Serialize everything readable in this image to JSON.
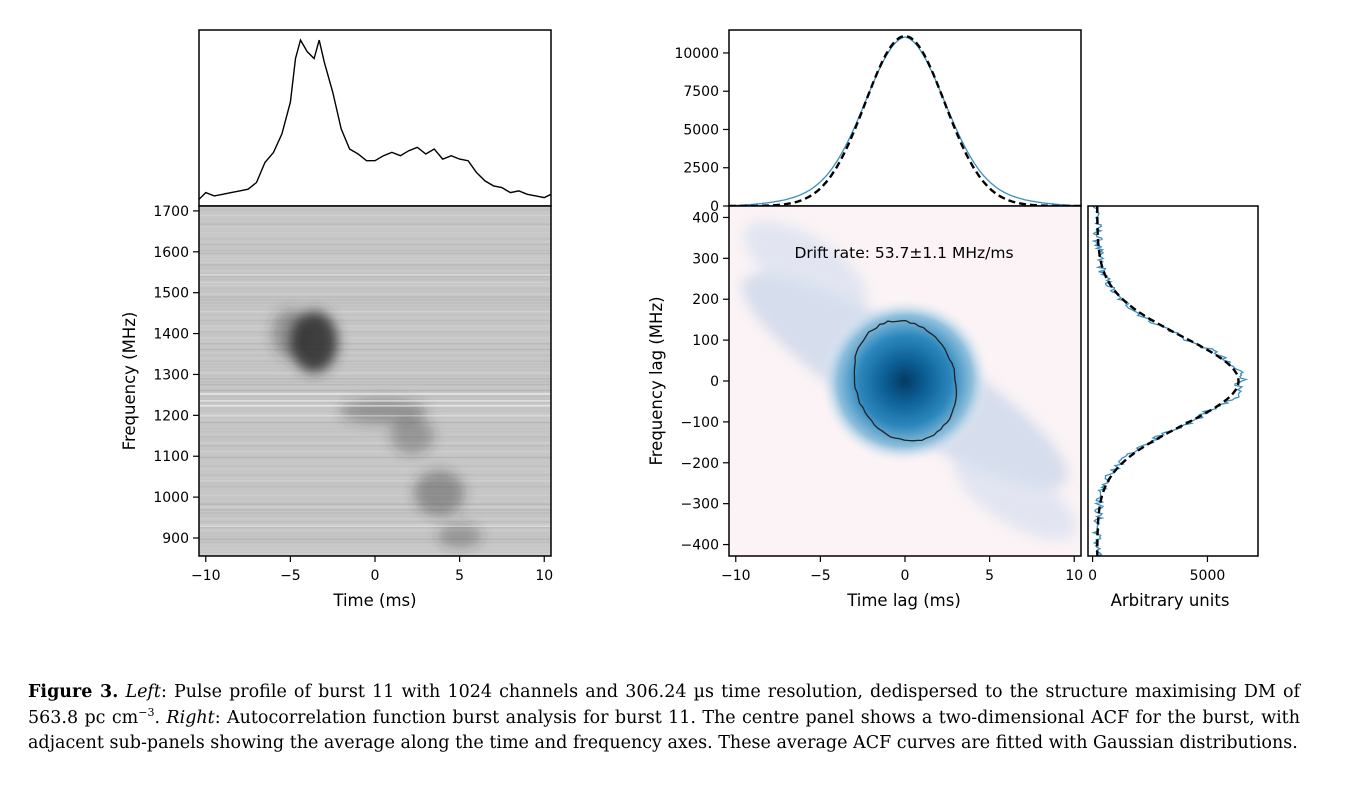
{
  "caption": {
    "label": "Figure 3.",
    "left_word": "Left",
    "left_text": ": Pulse profile of burst 11 with 1024 channels and 306.24 µs time resolution, dedispersed to the structure maximising DM of 563.8 pc cm",
    "left_sup": "−3",
    "left_end": ". ",
    "right_word": "Right",
    "right_text": ": Autocorrelation function burst analysis for burst 11. The centre panel shows a two-dimensional ACF for the burst, with adjacent sub-panels showing the average along the time and frequency axes. These average ACF curves are fitted with Gaussian distributions."
  },
  "chart_data": [
    {
      "type": "line",
      "panel": "left-top pulse profile",
      "x": [
        -10.4,
        -10.0,
        -9.5,
        -9.0,
        -8.5,
        -8.0,
        -7.5,
        -7.0,
        -6.5,
        -6.0,
        -5.5,
        -5.0,
        -4.7,
        -4.4,
        -4.0,
        -3.6,
        -3.3,
        -3.0,
        -2.5,
        -2.0,
        -1.5,
        -1.0,
        -0.5,
        0.0,
        0.5,
        1.0,
        1.5,
        2.0,
        2.5,
        3.0,
        3.5,
        4.0,
        4.5,
        5.0,
        5.5,
        6.0,
        6.5,
        7.0,
        7.5,
        8.0,
        8.5,
        9.0,
        9.5,
        10.0,
        10.4
      ],
      "values": [
        0.04,
        0.08,
        0.06,
        0.07,
        0.08,
        0.09,
        0.1,
        0.14,
        0.26,
        0.32,
        0.43,
        0.62,
        0.88,
        0.99,
        0.92,
        0.88,
        0.99,
        0.86,
        0.68,
        0.46,
        0.34,
        0.31,
        0.27,
        0.27,
        0.3,
        0.32,
        0.3,
        0.33,
        0.35,
        0.31,
        0.34,
        0.28,
        0.3,
        0.28,
        0.27,
        0.2,
        0.15,
        0.12,
        0.11,
        0.08,
        0.09,
        0.07,
        0.06,
        0.05,
        0.07
      ],
      "xlim": [
        -10.4,
        10.4
      ],
      "color": "#000000"
    },
    {
      "type": "heatmap",
      "panel": "left-bottom dynamic spectrum",
      "xlabel": "Time (ms)",
      "ylabel": "Frequency (MHz)",
      "xlim": [
        -10.4,
        10.4
      ],
      "ylim": [
        856,
        1712
      ],
      "xticks": [
        "−10",
        "−5",
        "0",
        "5",
        "10"
      ],
      "xtick_values": [
        -10,
        -5,
        0,
        5,
        10
      ],
      "yticks": [
        "900",
        "1000",
        "1100",
        "1200",
        "1300",
        "1400",
        "1500",
        "1600",
        "1700"
      ],
      "ytick_values": [
        900,
        1000,
        1100,
        1200,
        1300,
        1400,
        1500,
        1600,
        1700
      ],
      "background": "#c6c6c6",
      "emission_regions": [
        {
          "t": -3.6,
          "f": 1380,
          "dt": 1.4,
          "df": 75,
          "level": 0.9
        },
        {
          "t": -5.0,
          "f": 1400,
          "dt": 1.1,
          "df": 60,
          "level": 0.35
        },
        {
          "t": 0.5,
          "f": 1210,
          "dt": 2.6,
          "df": 30,
          "level": 0.35
        },
        {
          "t": 2.2,
          "f": 1150,
          "dt": 1.3,
          "df": 45,
          "level": 0.3
        },
        {
          "t": 3.8,
          "f": 1010,
          "dt": 1.5,
          "df": 55,
          "level": 0.38
        },
        {
          "t": 5.0,
          "f": 905,
          "dt": 1.3,
          "df": 30,
          "level": 0.3
        }
      ]
    },
    {
      "type": "line",
      "panel": "right-top time ACF",
      "xlim": [
        -10.4,
        10.4
      ],
      "ylim": [
        0,
        11500
      ],
      "yticks": [
        "0",
        "2500",
        "5000",
        "7500",
        "10000"
      ],
      "ytick_values": [
        0,
        2500,
        5000,
        7500,
        10000
      ],
      "series": [
        {
          "kind": "data",
          "color": "#3a90c0",
          "amplitude": 11000,
          "sigma": 2.3,
          "shoulder_amp": 1800,
          "shoulder_sigma": 6.5
        },
        {
          "kind": "fit",
          "color": "#000000",
          "dashed": true,
          "amplitude": 11100,
          "sigma": 2.35
        }
      ]
    },
    {
      "type": "heatmap",
      "panel": "right-centre 2D ACF",
      "xlabel": "Time lag (ms)",
      "ylabel": "Frequency lag (MHz)",
      "xlim": [
        -10.4,
        10.4
      ],
      "ylim": [
        -428,
        428
      ],
      "xticks": [
        "−10",
        "−5",
        "0",
        "5",
        "10"
      ],
      "xtick_values": [
        -10,
        -5,
        0,
        5,
        10
      ],
      "yticks": [
        "−400",
        "−300",
        "−200",
        "−100",
        "0",
        "100",
        "200",
        "300",
        "400"
      ],
      "ytick_values": [
        -400,
        -300,
        -200,
        -100,
        0,
        100,
        200,
        300,
        400
      ],
      "annotation": "Drift rate: 53.7±1.1 MHz/ms",
      "core": {
        "sigma_t": 2.0,
        "sigma_f": 80,
        "color": "#0b5f95"
      },
      "contour": {
        "center_t": 0.0,
        "center_f": 0,
        "semi_t": 2.95,
        "semi_f": 150,
        "tilt_deg": -20,
        "color": "#222222"
      }
    },
    {
      "type": "line",
      "panel": "right-side frequency ACF",
      "xlabel": "Arbitrary units",
      "xticks": [
        "0",
        "5000"
      ],
      "xtick_values": [
        0,
        5000
      ],
      "xlim": [
        -200,
        7200
      ],
      "ylim": [
        -428,
        428
      ],
      "series": [
        {
          "kind": "data",
          "color": "#3a90c0",
          "amplitude": 6300,
          "sigma": 105
        },
        {
          "kind": "fit",
          "color": "#000000",
          "dashed": true,
          "amplitude": 6150,
          "sigma": 108
        }
      ]
    }
  ]
}
